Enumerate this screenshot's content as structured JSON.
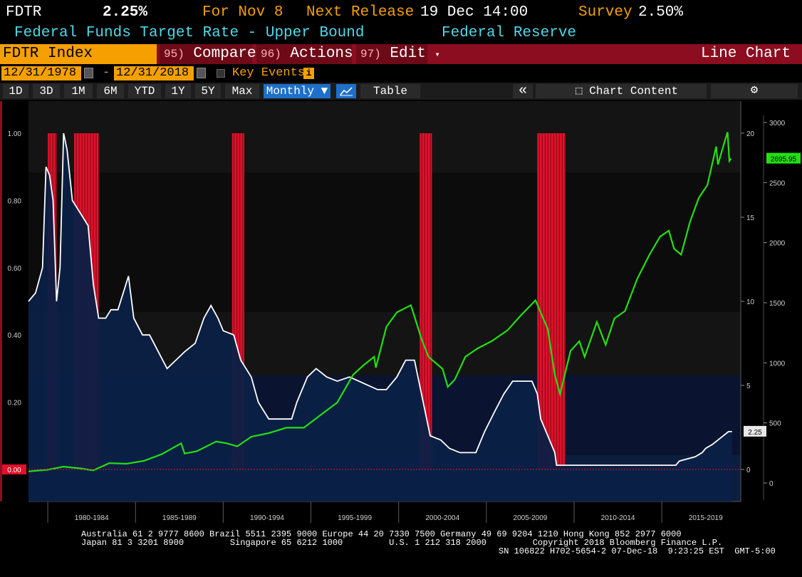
{
  "header": {
    "ticker": "FDTR",
    "value": "2.25%",
    "for_label": "For Nov 8",
    "next_release_label": "Next Release",
    "next_release_value": "19 Dec 14:00",
    "survey_label": "Survey",
    "survey_value": "2.50%",
    "description": "Federal Funds Target Rate - Upper Bound",
    "source": "Federal Reserve"
  },
  "security_bar": {
    "security": "FDTR Index",
    "compare_num": "95)",
    "compare_label": "Compare",
    "actions_num": "96)",
    "actions_label": "Actions",
    "edit_num": "97)",
    "edit_label": "Edit",
    "chart_type": "Line Chart"
  },
  "date_bar": {
    "start": "12/31/1978",
    "separator": "-",
    "end": "12/31/2018",
    "key_events": "Key Events",
    "info_glyph": "i"
  },
  "toolbar": {
    "periods": [
      "1D",
      "3D",
      "1M",
      "6M",
      "YTD",
      "1Y",
      "5Y",
      "Max"
    ],
    "frequency": "Monthly ▼",
    "table": "Table",
    "collapse_glyph": "«",
    "chart_content": "Chart Content",
    "settings_glyph": "⚙"
  },
  "colors": {
    "background": "#000000",
    "area_fill": "#0b2046",
    "fdtr_line": "#ffffff",
    "spx_line": "#22e010",
    "recession_bar": "#e0112b",
    "orange": "#f5a000",
    "cyan": "#4fd8e8"
  },
  "chart_data": {
    "type": "line",
    "x_tick_labels": [
      "1980-1984",
      "1985-1989",
      "1990-1994",
      "1995-1999",
      "2000-2004",
      "2005-2009",
      "2010-2014",
      "2015-2019"
    ],
    "x_range": [
      1978.9,
      2019.5
    ],
    "left_axis": {
      "ticks": [
        "1.00",
        "0.80",
        "0.60",
        "0.40",
        "0.20",
        "0.00"
      ],
      "range": [
        0,
        1.0
      ]
    },
    "right_axis_rate": {
      "ticks": [
        "20",
        "15",
        "10",
        "5",
        "0"
      ],
      "range": [
        0,
        20
      ]
    },
    "right_axis_index": {
      "ticks": [
        "3000",
        "2500",
        "2000",
        "1500",
        "1000",
        "500",
        "0"
      ],
      "range": [
        0,
        3000
      ]
    },
    "recession_periods": [
      [
        1980.0,
        1980.5
      ],
      [
        1981.5,
        1982.9
      ],
      [
        1990.5,
        1991.2
      ],
      [
        2001.2,
        2001.9
      ],
      [
        2007.9,
        2009.5
      ]
    ],
    "last_value_labels": {
      "rate": "2.25",
      "index": "2695.95",
      "left_zero": "0.00"
    },
    "series": [
      {
        "axis": "right_axis_rate",
        "style": "area",
        "points": [
          [
            1978.9,
            10.0
          ],
          [
            1979.3,
            10.5
          ],
          [
            1979.7,
            12.0
          ],
          [
            1979.9,
            18.0
          ],
          [
            1980.1,
            17.5
          ],
          [
            1980.3,
            16.0
          ],
          [
            1980.5,
            10.0
          ],
          [
            1980.7,
            12.0
          ],
          [
            1980.9,
            20.0
          ],
          [
            1981.1,
            19.0
          ],
          [
            1981.4,
            16.0
          ],
          [
            1981.7,
            15.5
          ],
          [
            1982.0,
            15.0
          ],
          [
            1982.3,
            14.5
          ],
          [
            1982.6,
            11.0
          ],
          [
            1982.9,
            9.0
          ],
          [
            1983.3,
            9.0
          ],
          [
            1983.6,
            9.5
          ],
          [
            1984.0,
            9.5
          ],
          [
            1984.6,
            11.5
          ],
          [
            1984.9,
            9.0
          ],
          [
            1985.4,
            8.0
          ],
          [
            1985.8,
            8.0
          ],
          [
            1986.3,
            7.0
          ],
          [
            1986.8,
            6.0
          ],
          [
            1987.3,
            6.5
          ],
          [
            1987.8,
            7.0
          ],
          [
            1988.4,
            7.5
          ],
          [
            1988.9,
            9.0
          ],
          [
            1989.3,
            9.75
          ],
          [
            1989.7,
            9.0
          ],
          [
            1990.0,
            8.25
          ],
          [
            1990.6,
            8.0
          ],
          [
            1991.0,
            6.5
          ],
          [
            1991.6,
            5.5
          ],
          [
            1992.0,
            4.0
          ],
          [
            1992.6,
            3.0
          ],
          [
            1993.9,
            3.0
          ],
          [
            1994.2,
            4.0
          ],
          [
            1994.8,
            5.5
          ],
          [
            1995.3,
            6.0
          ],
          [
            1995.9,
            5.5
          ],
          [
            1996.5,
            5.25
          ],
          [
            1997.2,
            5.5
          ],
          [
            1998.8,
            4.75
          ],
          [
            1999.3,
            4.75
          ],
          [
            1999.9,
            5.5
          ],
          [
            2000.4,
            6.5
          ],
          [
            2000.9,
            6.5
          ],
          [
            2001.3,
            4.5
          ],
          [
            2001.8,
            2.0
          ],
          [
            2002.4,
            1.75
          ],
          [
            2002.9,
            1.25
          ],
          [
            2003.5,
            1.0
          ],
          [
            2004.4,
            1.0
          ],
          [
            2004.9,
            2.25
          ],
          [
            2005.5,
            3.5
          ],
          [
            2006.0,
            4.5
          ],
          [
            2006.5,
            5.25
          ],
          [
            2007.6,
            5.25
          ],
          [
            2007.9,
            4.5
          ],
          [
            2008.1,
            3.0
          ],
          [
            2008.5,
            2.0
          ],
          [
            2008.9,
            1.0
          ],
          [
            2009.0,
            0.25
          ],
          [
            2015.8,
            0.25
          ],
          [
            2016.0,
            0.5
          ],
          [
            2016.9,
            0.75
          ],
          [
            2017.3,
            1.0
          ],
          [
            2017.5,
            1.25
          ],
          [
            2017.9,
            1.5
          ],
          [
            2018.2,
            1.75
          ],
          [
            2018.5,
            2.0
          ],
          [
            2018.8,
            2.25
          ],
          [
            2019.0,
            2.25
          ]
        ]
      },
      {
        "axis": "right_axis_index",
        "style": "line",
        "points": [
          [
            1978.9,
            96
          ],
          [
            1980.0,
            110
          ],
          [
            1980.9,
            136
          ],
          [
            1981.8,
            122
          ],
          [
            1982.6,
            105
          ],
          [
            1983.5,
            165
          ],
          [
            1984.5,
            160
          ],
          [
            1985.5,
            185
          ],
          [
            1986.5,
            240
          ],
          [
            1987.6,
            330
          ],
          [
            1987.8,
            245
          ],
          [
            1988.5,
            265
          ],
          [
            1989.6,
            345
          ],
          [
            1990.2,
            330
          ],
          [
            1990.8,
            305
          ],
          [
            1991.6,
            385
          ],
          [
            1992.6,
            415
          ],
          [
            1993.6,
            460
          ],
          [
            1994.6,
            460
          ],
          [
            1995.5,
            560
          ],
          [
            1996.5,
            670
          ],
          [
            1997.4,
            900
          ],
          [
            1998.0,
            980
          ],
          [
            1998.6,
            1050
          ],
          [
            1998.7,
            960
          ],
          [
            1999.3,
            1300
          ],
          [
            1999.9,
            1420
          ],
          [
            2000.7,
            1480
          ],
          [
            2001.3,
            1200
          ],
          [
            2001.7,
            1050
          ],
          [
            2002.5,
            950
          ],
          [
            2002.8,
            800
          ],
          [
            2003.2,
            860
          ],
          [
            2003.8,
            1050
          ],
          [
            2004.5,
            1120
          ],
          [
            2005.3,
            1180
          ],
          [
            2006.2,
            1270
          ],
          [
            2007.0,
            1400
          ],
          [
            2007.8,
            1520
          ],
          [
            2008.5,
            1280
          ],
          [
            2008.9,
            900
          ],
          [
            2009.2,
            740
          ],
          [
            2009.8,
            1100
          ],
          [
            2010.3,
            1180
          ],
          [
            2010.6,
            1050
          ],
          [
            2011.3,
            1340
          ],
          [
            2011.8,
            1150
          ],
          [
            2012.3,
            1370
          ],
          [
            2012.9,
            1430
          ],
          [
            2013.6,
            1700
          ],
          [
            2014.3,
            1900
          ],
          [
            2014.9,
            2050
          ],
          [
            2015.4,
            2100
          ],
          [
            2015.7,
            1950
          ],
          [
            2016.1,
            1900
          ],
          [
            2016.6,
            2170
          ],
          [
            2017.1,
            2370
          ],
          [
            2017.6,
            2480
          ],
          [
            2018.1,
            2800
          ],
          [
            2018.2,
            2650
          ],
          [
            2018.6,
            2850
          ],
          [
            2018.75,
            2920
          ],
          [
            2018.85,
            2680
          ],
          [
            2018.95,
            2700
          ]
        ]
      }
    ]
  },
  "footer": {
    "line1": "Australia 61 2 9777 8600 Brazil 5511 2395 9000 Europe 44 20 7330 7500 Germany 49 69 9204 1210 Hong Kong 852 2977 6000",
    "line2": "Japan 81 3 3201 8900         Singapore 65 6212 1000         U.S. 1 212 318 2000         Copyright 2018 Bloomberg Finance L.P.",
    "line3": "SN 106822 H702-5654-2 07-Dec-18  9:23:25 EST  GMT-5:00"
  }
}
